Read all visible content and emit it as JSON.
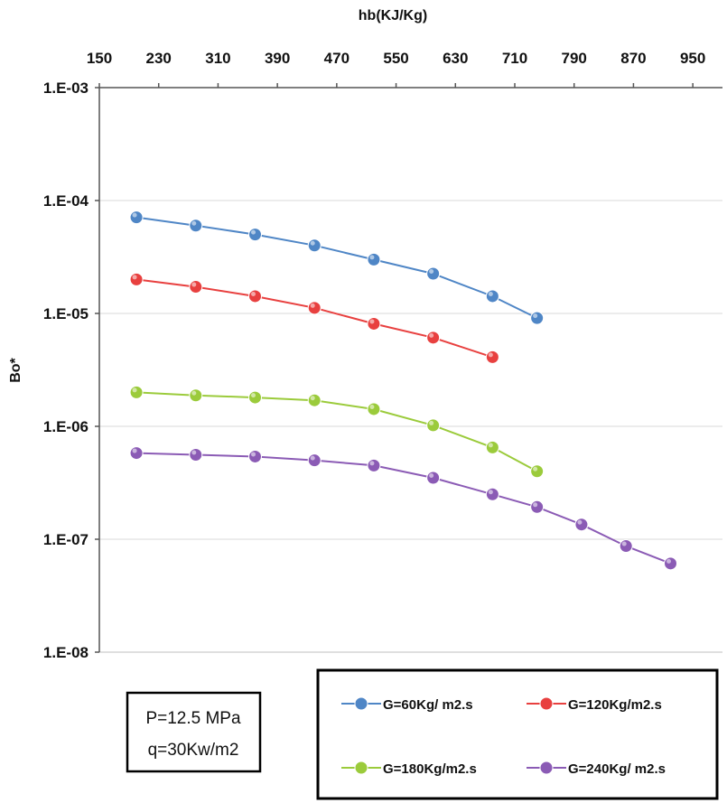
{
  "chart_data": {
    "type": "line",
    "title": "",
    "xlabel": "hb(KJ/Kg)",
    "ylabel": "Bo*",
    "x_axis_position": "top",
    "y_scale": "log",
    "xlim": [
      150,
      990
    ],
    "ylim": [
      1e-08,
      0.001
    ],
    "x_ticks": [
      "150",
      "230",
      "310",
      "390",
      "470",
      "550",
      "630",
      "710",
      "790",
      "870",
      "950"
    ],
    "y_ticks": [
      "1.E-03",
      "1.E-04",
      "1.E-05",
      "1.E-06",
      "1.E-07",
      "1.E-08"
    ],
    "grid": "horizontal",
    "series": [
      {
        "name": "G=60Kg/ m2.s",
        "color": "#4f86c6",
        "x": [
          200,
          280,
          360,
          440,
          520,
          600,
          680,
          740
        ],
        "y": [
          7.1e-05,
          6e-05,
          5e-05,
          4e-05,
          3e-05,
          2.25e-05,
          1.42e-05,
          9.1e-06
        ]
      },
      {
        "name": "G=120Kg/m2.s",
        "color": "#e8403f",
        "x": [
          200,
          280,
          360,
          440,
          520,
          600,
          680
        ],
        "y": [
          2e-05,
          1.72e-05,
          1.42e-05,
          1.12e-05,
          8.1e-06,
          6.1e-06,
          4.1e-06
        ]
      },
      {
        "name": "G=180Kg/m2.s",
        "color": "#9bcb3b",
        "x": [
          200,
          280,
          360,
          440,
          520,
          600,
          680,
          740
        ],
        "y": [
          2e-06,
          1.88e-06,
          1.8e-06,
          1.7e-06,
          1.42e-06,
          1.02e-06,
          6.5e-07,
          4e-07
        ]
      },
      {
        "name": "G=240Kg/ m2.s",
        "color": "#8b5bb5",
        "x": [
          200,
          280,
          360,
          440,
          520,
          600,
          680,
          740,
          800,
          860,
          920
        ],
        "y": [
          5.8e-07,
          5.6e-07,
          5.4e-07,
          5e-07,
          4.5e-07,
          3.5e-07,
          2.5e-07,
          1.93e-07,
          1.35e-07,
          8.7e-08,
          6.1e-08
        ]
      }
    ],
    "legend": {
      "placement": "bottom-right",
      "bordered": true
    },
    "annotation": {
      "placement": "bottom-left",
      "lines": [
        "P=12.5 MPa",
        "q=30Kw/m2"
      ]
    }
  }
}
